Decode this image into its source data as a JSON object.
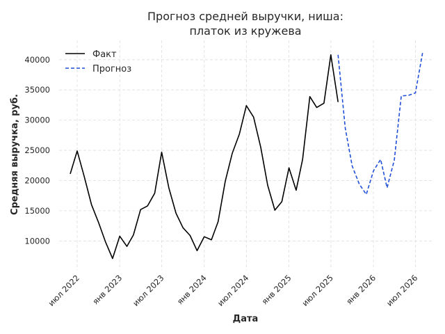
{
  "chart_data": {
    "type": "line",
    "title_lines": [
      "Прогноз средней выручки, ниша:",
      "платок из кружева"
    ],
    "xlabel": "Дата",
    "ylabel": "Средняя выручка, руб.",
    "x_tick_labels": [
      "июл 2022",
      "янв 2023",
      "июл 2023",
      "янв 2024",
      "июл 2024",
      "янв 2025",
      "июл 2025",
      "янв 2026",
      "июл 2026"
    ],
    "y_ticks": [
      10000,
      15000,
      20000,
      25000,
      30000,
      35000,
      40000
    ],
    "ylim": [
      5200,
      43200
    ],
    "xlim": [
      "2022-04-14",
      "2026-09-19"
    ],
    "grid": true,
    "legend_position": "top-left",
    "series": [
      {
        "name": "Факт",
        "color": "#000000",
        "style": "solid",
        "x": [
          "2022-06-01",
          "2022-07-01",
          "2022-08-01",
          "2022-09-01",
          "2022-10-01",
          "2022-11-01",
          "2022-12-01",
          "2023-01-01",
          "2023-02-01",
          "2023-03-01",
          "2023-04-01",
          "2023-05-01",
          "2023-06-01",
          "2023-07-01",
          "2023-08-01",
          "2023-09-01",
          "2023-10-01",
          "2023-11-01",
          "2023-12-01",
          "2024-01-01",
          "2024-02-01",
          "2024-03-01",
          "2024-04-01",
          "2024-05-01",
          "2024-06-01",
          "2024-07-01",
          "2024-08-01",
          "2024-09-01",
          "2024-10-01",
          "2024-11-01",
          "2024-12-01",
          "2025-01-01",
          "2025-02-01",
          "2025-03-01",
          "2025-04-01",
          "2025-05-01",
          "2025-06-01",
          "2025-07-01",
          "2025-08-01"
        ],
        "values": [
          21100,
          24900,
          20600,
          16000,
          13100,
          9800,
          7100,
          10800,
          9100,
          11000,
          15200,
          15800,
          17900,
          24700,
          18800,
          14600,
          12200,
          10900,
          8400,
          10700,
          10200,
          13200,
          19900,
          24500,
          27700,
          32400,
          30500,
          25500,
          19200,
          15100,
          16500,
          22100,
          18400,
          23500,
          33900,
          32100,
          32800,
          40800,
          33000
        ]
      },
      {
        "name": "Прогноз",
        "color": "#1f4fd8",
        "style": "dashed",
        "x": [
          "2025-08-01",
          "2025-09-01",
          "2025-10-01",
          "2025-11-01",
          "2025-12-01",
          "2026-01-01",
          "2026-02-01",
          "2026-03-01",
          "2026-04-01",
          "2026-05-01",
          "2026-06-01",
          "2026-07-01",
          "2026-08-01"
        ],
        "values": [
          40800,
          28700,
          22400,
          19400,
          17700,
          21600,
          23500,
          18800,
          23400,
          34000,
          34100,
          34500,
          41100
        ]
      }
    ]
  }
}
